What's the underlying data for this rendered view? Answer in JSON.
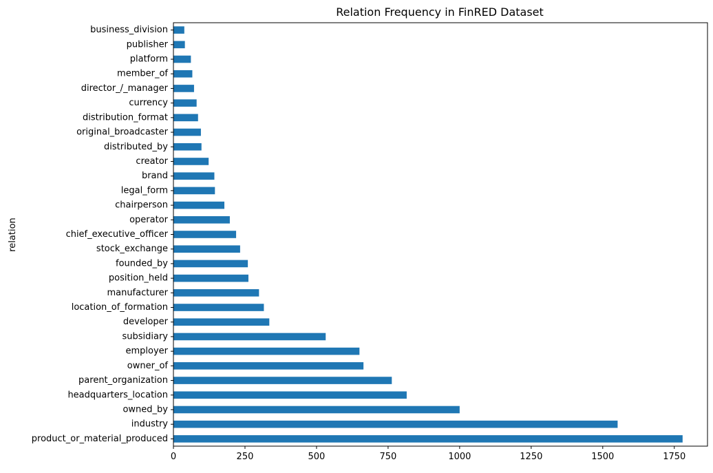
{
  "chart_data": {
    "type": "bar",
    "orientation": "horizontal",
    "title": "Relation Frequency in FinRED Dataset",
    "xlabel": "",
    "ylabel": "relation",
    "xlim": [
      0,
      1866
    ],
    "xticks": [
      0,
      250,
      500,
      750,
      1000,
      1250,
      1500,
      1750
    ],
    "grid": false,
    "legend": "none",
    "bar_color": "#1f77b4",
    "categories": [
      "product_or_material_produced",
      "industry",
      "owned_by",
      "headquarters_location",
      "parent_organization",
      "owner_of",
      "employer",
      "subsidiary",
      "developer",
      "location_of_formation",
      "manufacturer",
      "position_held",
      "founded_by",
      "stock_exchange",
      "chief_executive_officer",
      "operator",
      "chairperson",
      "legal_form",
      "brand",
      "creator",
      "distributed_by",
      "original_broadcaster",
      "distribution_format",
      "currency",
      "director_/_manager",
      "member_of",
      "platform",
      "publisher",
      "business_division"
    ],
    "values": [
      1779,
      1552,
      1000,
      815,
      763,
      664,
      650,
      532,
      335,
      316,
      299,
      262,
      260,
      233,
      219,
      197,
      178,
      145,
      143,
      123,
      98,
      96,
      86,
      81,
      72,
      66,
      61,
      40,
      38
    ]
  }
}
